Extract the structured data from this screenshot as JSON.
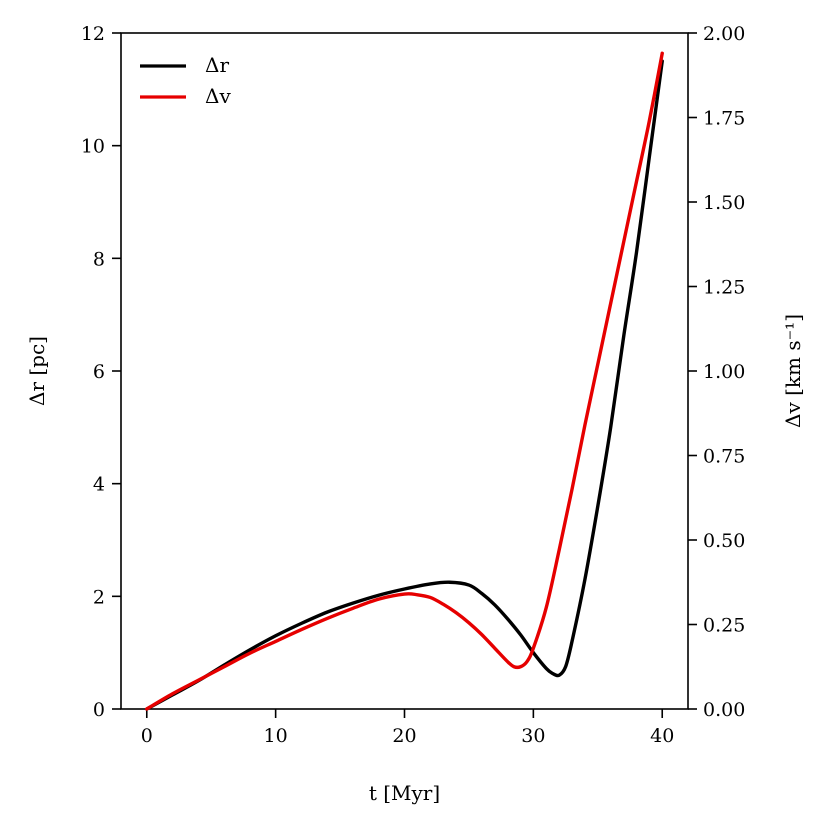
{
  "chart_data": {
    "type": "line",
    "title": "",
    "xlabel": "t [Myr]",
    "ylabel_left": "Δr [pc]",
    "ylabel_right": "Δv [km s⁻¹]",
    "xlim": [
      -2,
      42
    ],
    "ylim_left": [
      0,
      12
    ],
    "ylim_right": [
      0,
      2
    ],
    "xticks": [
      0,
      10,
      20,
      30,
      40
    ],
    "yticks_left": [
      0,
      2,
      4,
      6,
      8,
      10,
      12
    ],
    "yticks_right": [
      "0.00",
      "0.25",
      "0.50",
      "0.75",
      "1.00",
      "1.25",
      "1.50",
      "1.75",
      "2.00"
    ],
    "grid": false,
    "legend": "top-left",
    "series": [
      {
        "name": "Δr",
        "axis": "left",
        "color": "#000000",
        "x": [
          0,
          2,
          4,
          6,
          8,
          10,
          12,
          14,
          16,
          18,
          20,
          22,
          23.5,
          25,
          26,
          27,
          28,
          29,
          30,
          31,
          31.5,
          32,
          32.5,
          33,
          34,
          35,
          36,
          37,
          38,
          39,
          40
        ],
        "y": [
          0,
          0.25,
          0.5,
          0.78,
          1.05,
          1.3,
          1.52,
          1.72,
          1.88,
          2.02,
          2.13,
          2.22,
          2.25,
          2.2,
          2.05,
          1.85,
          1.6,
          1.32,
          1.0,
          0.72,
          0.63,
          0.6,
          0.75,
          1.2,
          2.3,
          3.6,
          5.0,
          6.6,
          8.1,
          9.8,
          11.5
        ]
      },
      {
        "name": "Δv",
        "axis": "right",
        "color": "#e60000",
        "x": [
          0,
          2,
          4,
          6,
          8,
          10,
          12,
          14,
          16,
          18,
          20,
          21,
          22,
          23,
          24,
          25,
          26,
          27,
          28,
          28.5,
          29,
          29.5,
          30,
          31,
          32,
          33,
          34,
          35,
          36,
          37,
          38,
          39,
          40
        ],
        "y": [
          0,
          0.045,
          0.085,
          0.125,
          0.165,
          0.2,
          0.235,
          0.268,
          0.298,
          0.325,
          0.34,
          0.338,
          0.33,
          0.31,
          0.285,
          0.255,
          0.22,
          0.18,
          0.14,
          0.125,
          0.125,
          0.14,
          0.18,
          0.3,
          0.47,
          0.65,
          0.84,
          1.02,
          1.2,
          1.38,
          1.56,
          1.74,
          1.94
        ]
      }
    ]
  }
}
